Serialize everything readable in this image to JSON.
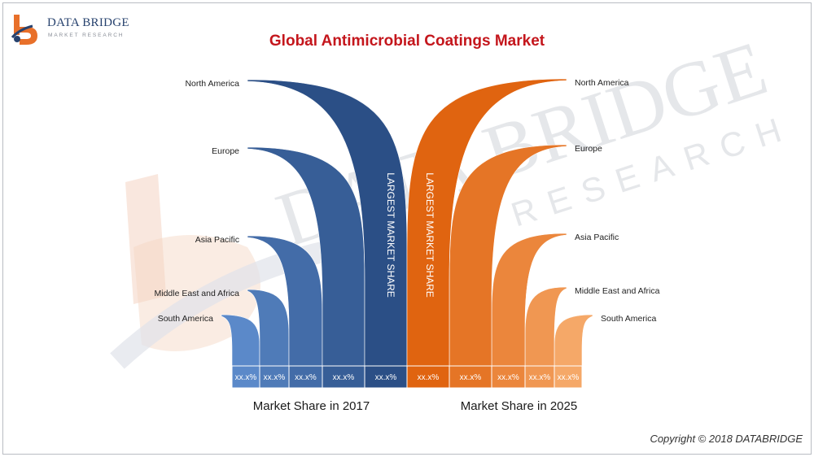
{
  "brand": {
    "name": "DATA BRIDGE",
    "sub": "MARKET RESEARCH",
    "watermark_name": "DATA BRIDGE",
    "watermark_sub": "RESEARCH"
  },
  "title": "Global Antimicrobial Coatings Market",
  "copyright": "Copyright © 2018 DATABRIDGE",
  "colors": {
    "blue_dark": "#2b4f86",
    "blue_light": "#5b89c9",
    "orange_dark": "#e06410",
    "orange_light": "#f5a868",
    "title": "#c4161c"
  },
  "chart_data": {
    "type": "bar",
    "title": "Global Antimicrobial Coatings Market",
    "categories": [
      "North America",
      "Europe",
      "Asia Pacific",
      "Middle East and Africa",
      "South America"
    ],
    "series": [
      {
        "name": "Market Share in 2017",
        "values": [
          "xx.x%",
          "xx.x%",
          "xx.x%",
          "xx.x%",
          "xx.x%"
        ]
      },
      {
        "name": "Market Share in 2025",
        "values": [
          "xx.x%",
          "xx.x%",
          "xx.x%",
          "xx.x%",
          "xx.x%"
        ]
      }
    ],
    "annotation": "LARGEST MARKET SHARE",
    "rank_order": [
      "North America",
      "Europe",
      "Asia Pacific",
      "Middle East and Africa",
      "South America"
    ],
    "legend": "bottom",
    "grid": false
  }
}
